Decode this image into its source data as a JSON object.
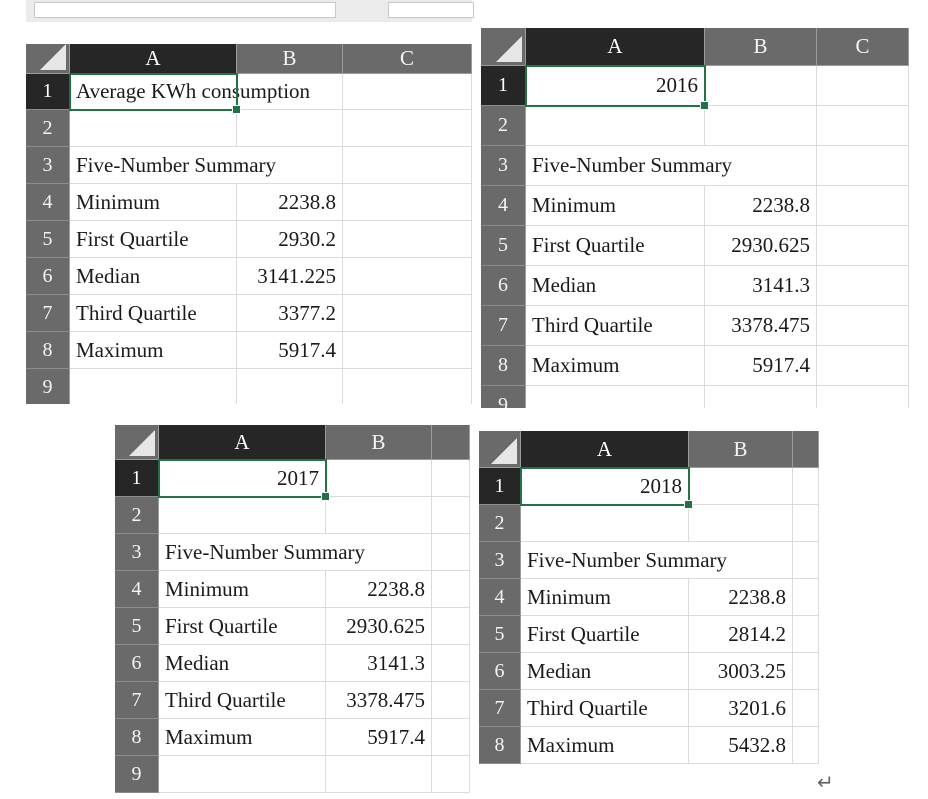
{
  "sheets": [
    {
      "name": "panel-1",
      "columns": [
        "A",
        "B",
        "C"
      ],
      "rows": [
        {
          "n": "1",
          "a": "Average KWh consumption",
          "b": ""
        },
        {
          "n": "2",
          "a": "",
          "b": ""
        },
        {
          "n": "3",
          "a": "Five-Number Summary",
          "b": ""
        },
        {
          "n": "4",
          "a": "Minimum",
          "b": "2238.8"
        },
        {
          "n": "5",
          "a": "First Quartile",
          "b": "2930.2"
        },
        {
          "n": "6",
          "a": "Median",
          "b": "3141.225"
        },
        {
          "n": "7",
          "a": "Third Quartile",
          "b": "3377.2"
        },
        {
          "n": "8",
          "a": "Maximum",
          "b": "5917.4"
        },
        {
          "n": "9",
          "a": "",
          "b": ""
        }
      ]
    },
    {
      "name": "panel-2016",
      "columns": [
        "A",
        "B",
        "C"
      ],
      "rows": [
        {
          "n": "1",
          "a": "2016",
          "b": ""
        },
        {
          "n": "2",
          "a": "",
          "b": ""
        },
        {
          "n": "3",
          "a": "Five-Number Summary",
          "b": ""
        },
        {
          "n": "4",
          "a": "Minimum",
          "b": "2238.8"
        },
        {
          "n": "5",
          "a": "First Quartile",
          "b": "2930.625"
        },
        {
          "n": "6",
          "a": "Median",
          "b": "3141.3"
        },
        {
          "n": "7",
          "a": "Third Quartile",
          "b": "3378.475"
        },
        {
          "n": "8",
          "a": "Maximum",
          "b": "5917.4"
        },
        {
          "n": "9",
          "a": "",
          "b": ""
        }
      ]
    },
    {
      "name": "panel-2017",
      "columns": [
        "A",
        "B",
        ""
      ],
      "rows": [
        {
          "n": "1",
          "a": "2017",
          "b": ""
        },
        {
          "n": "2",
          "a": "",
          "b": ""
        },
        {
          "n": "3",
          "a": "Five-Number Summary",
          "b": ""
        },
        {
          "n": "4",
          "a": "Minimum",
          "b": "2238.8"
        },
        {
          "n": "5",
          "a": "First Quartile",
          "b": "2930.625"
        },
        {
          "n": "6",
          "a": "Median",
          "b": "3141.3"
        },
        {
          "n": "7",
          "a": "Third Quartile",
          "b": "3378.475"
        },
        {
          "n": "8",
          "a": "Maximum",
          "b": "5917.4"
        },
        {
          "n": "9",
          "a": "",
          "b": ""
        }
      ]
    },
    {
      "name": "panel-2018",
      "columns": [
        "A",
        "B",
        ""
      ],
      "rows": [
        {
          "n": "1",
          "a": "2018",
          "b": ""
        },
        {
          "n": "2",
          "a": "",
          "b": ""
        },
        {
          "n": "3",
          "a": "Five-Number Summary",
          "b": ""
        },
        {
          "n": "4",
          "a": "Minimum",
          "b": "2238.8"
        },
        {
          "n": "5",
          "a": "First Quartile",
          "b": "2814.2"
        },
        {
          "n": "6",
          "a": "Median",
          "b": "3003.25"
        },
        {
          "n": "7",
          "a": "Third Quartile",
          "b": "3201.6"
        },
        {
          "n": "8",
          "a": "Maximum",
          "b": "5432.8"
        }
      ]
    }
  ],
  "colors": {
    "header_bg": "#6a6a6a",
    "header_selected_bg": "#262626",
    "selection_border": "#217346",
    "gridline": "#dadada"
  },
  "icons": {
    "paragraph_mark": "↵"
  }
}
